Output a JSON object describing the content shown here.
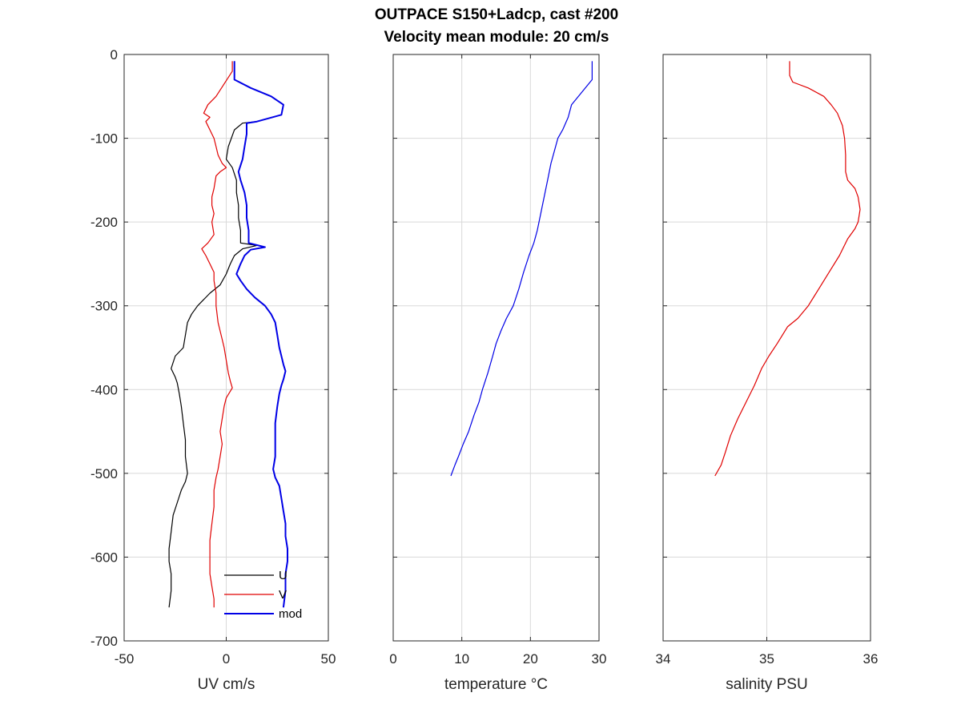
{
  "figure": {
    "title_line1": "OUTPACE S150+Ladcp, cast #200",
    "title_line2": "Velocity mean module:  20 cm/s"
  },
  "chart_data": [
    {
      "type": "line",
      "xlabel": "UV cm/s",
      "ylabel": "",
      "xlim": [
        -50,
        50
      ],
      "ylim": [
        -700,
        0
      ],
      "xticks": [
        -50,
        0,
        50
      ],
      "yticks": [
        0,
        -100,
        -200,
        -300,
        -400,
        -500,
        -600,
        -700
      ],
      "grid": true,
      "legend": {
        "placement": "bottom-right",
        "entries": [
          "U",
          "V",
          "mod"
        ]
      },
      "series": [
        {
          "name": "U",
          "color": "#000000",
          "width": 1.2,
          "points": [
            [
              4,
              -8
            ],
            [
              4,
              -30
            ],
            [
              12,
              -40
            ],
            [
              22,
              -50
            ],
            [
              28,
              -60
            ],
            [
              27,
              -72
            ],
            [
              15,
              -80
            ],
            [
              8,
              -82
            ],
            [
              4,
              -90
            ],
            [
              1,
              -110
            ],
            [
              0,
              -125
            ],
            [
              3,
              -135
            ],
            [
              5,
              -150
            ],
            [
              5,
              -165
            ],
            [
              6,
              -180
            ],
            [
              6,
              -195
            ],
            [
              7,
              -210
            ],
            [
              7,
              -225
            ],
            [
              15,
              -228
            ],
            [
              8,
              -232
            ],
            [
              4,
              -240
            ],
            [
              2,
              -250
            ],
            [
              0,
              -262
            ],
            [
              -3,
              -275
            ],
            [
              -8,
              -285
            ],
            [
              -14,
              -300
            ],
            [
              -17,
              -310
            ],
            [
              -19,
              -320
            ],
            [
              -20,
              -335
            ],
            [
              -21,
              -350
            ],
            [
              -25,
              -360
            ],
            [
              -27,
              -375
            ],
            [
              -25,
              -385
            ],
            [
              -24,
              -392
            ],
            [
              -23,
              -405
            ],
            [
              -22,
              -420
            ],
            [
              -21,
              -440
            ],
            [
              -20,
              -460
            ],
            [
              -20,
              -480
            ],
            [
              -19,
              -500
            ],
            [
              -20,
              -510
            ],
            [
              -22,
              -520
            ],
            [
              -24,
              -535
            ],
            [
              -26,
              -550
            ],
            [
              -27,
              -570
            ],
            [
              -28,
              -590
            ],
            [
              -28,
              -605
            ],
            [
              -27,
              -620
            ],
            [
              -27,
              -640
            ],
            [
              -28,
              -660
            ]
          ]
        },
        {
          "name": "V",
          "color": "#e00000",
          "width": 1.2,
          "points": [
            [
              3,
              -8
            ],
            [
              3,
              -20
            ],
            [
              -5,
              -50
            ],
            [
              -9,
              -60
            ],
            [
              -11,
              -70
            ],
            [
              -8,
              -75
            ],
            [
              -10,
              -80
            ],
            [
              -8,
              -90
            ],
            [
              -6,
              -100
            ],
            [
              -5,
              -110
            ],
            [
              -4,
              -120
            ],
            [
              -2,
              -130
            ],
            [
              0,
              -135
            ],
            [
              -3,
              -140
            ],
            [
              -5,
              -145
            ],
            [
              -6,
              -160
            ],
            [
              -7,
              -170
            ],
            [
              -7,
              -180
            ],
            [
              -6,
              -190
            ],
            [
              -7,
              -200
            ],
            [
              -6,
              -215
            ],
            [
              -9,
              -225
            ],
            [
              -12,
              -232
            ],
            [
              -10,
              -240
            ],
            [
              -8,
              -250
            ],
            [
              -6,
              -260
            ],
            [
              -6,
              -270
            ],
            [
              -5,
              -285
            ],
            [
              -5,
              -300
            ],
            [
              -4,
              -320
            ],
            [
              -2,
              -340
            ],
            [
              -1,
              -350
            ],
            [
              0,
              -365
            ],
            [
              1,
              -380
            ],
            [
              2,
              -390
            ],
            [
              3,
              -398
            ],
            [
              0,
              -410
            ],
            [
              -1,
              -420
            ],
            [
              -2,
              -435
            ],
            [
              -3,
              -450
            ],
            [
              -2,
              -465
            ],
            [
              -3,
              -480
            ],
            [
              -4,
              -495
            ],
            [
              -5,
              -505
            ],
            [
              -6,
              -520
            ],
            [
              -6,
              -540
            ],
            [
              -7,
              -560
            ],
            [
              -8,
              -580
            ],
            [
              -8,
              -600
            ],
            [
              -8,
              -620
            ],
            [
              -7,
              -635
            ],
            [
              -6,
              -650
            ],
            [
              -6,
              -660
            ]
          ]
        },
        {
          "name": "mod",
          "color": "#0000e6",
          "width": 2,
          "points": [
            [
              4,
              -8
            ],
            [
              4,
              -30
            ],
            [
              12,
              -40
            ],
            [
              22,
              -50
            ],
            [
              28,
              -60
            ],
            [
              27,
              -72
            ],
            [
              15,
              -80
            ],
            [
              10,
              -82
            ],
            [
              10,
              -95
            ],
            [
              9,
              -110
            ],
            [
              8,
              -125
            ],
            [
              6,
              -140
            ],
            [
              7,
              -150
            ],
            [
              9,
              -165
            ],
            [
              10,
              -180
            ],
            [
              10,
              -195
            ],
            [
              11,
              -210
            ],
            [
              11,
              -225
            ],
            [
              19,
              -230
            ],
            [
              12,
              -233
            ],
            [
              9,
              -240
            ],
            [
              7,
              -250
            ],
            [
              5,
              -262
            ],
            [
              7,
              -270
            ],
            [
              10,
              -280
            ],
            [
              14,
              -290
            ],
            [
              19,
              -300
            ],
            [
              22,
              -310
            ],
            [
              24,
              -320
            ],
            [
              25,
              -335
            ],
            [
              26,
              -350
            ],
            [
              27,
              -360
            ],
            [
              28,
              -370
            ],
            [
              29,
              -378
            ],
            [
              28,
              -388
            ],
            [
              27,
              -395
            ],
            [
              26,
              -405
            ],
            [
              25,
              -420
            ],
            [
              24,
              -440
            ],
            [
              24,
              -460
            ],
            [
              24,
              -480
            ],
            [
              23,
              -495
            ],
            [
              24,
              -505
            ],
            [
              26,
              -515
            ],
            [
              27,
              -530
            ],
            [
              28,
              -545
            ],
            [
              29,
              -560
            ],
            [
              29,
              -575
            ],
            [
              30,
              -590
            ],
            [
              30,
              -605
            ],
            [
              29,
              -620
            ],
            [
              29,
              -640
            ],
            [
              28,
              -660
            ]
          ]
        }
      ]
    },
    {
      "type": "line",
      "xlabel": "temperature °C",
      "ylabel": "",
      "xlim": [
        0,
        30
      ],
      "ylim": [
        -700,
        0
      ],
      "xticks": [
        0,
        10,
        20,
        30
      ],
      "grid": true,
      "series": [
        {
          "name": "",
          "color": "#0000e6",
          "width": 1.2,
          "points": [
            [
              29,
              -8
            ],
            [
              29,
              -30
            ],
            [
              28,
              -40
            ],
            [
              27,
              -50
            ],
            [
              26,
              -60
            ],
            [
              25.5,
              -75
            ],
            [
              24.7,
              -90
            ],
            [
              24,
              -100
            ],
            [
              23.5,
              -115
            ],
            [
              23,
              -130
            ],
            [
              22.5,
              -150
            ],
            [
              22,
              -170
            ],
            [
              21.5,
              -190
            ],
            [
              21,
              -210
            ],
            [
              20.5,
              -225
            ],
            [
              19.8,
              -240
            ],
            [
              19,
              -260
            ],
            [
              18.3,
              -280
            ],
            [
              17.5,
              -300
            ],
            [
              16.5,
              -315
            ],
            [
              15.7,
              -330
            ],
            [
              15,
              -345
            ],
            [
              14.5,
              -360
            ],
            [
              13.8,
              -380
            ],
            [
              13,
              -400
            ],
            [
              12.5,
              -415
            ],
            [
              11.8,
              -430
            ],
            [
              11,
              -450
            ],
            [
              10.2,
              -465
            ],
            [
              9.5,
              -480
            ],
            [
              9,
              -490
            ],
            [
              8.4,
              -503
            ]
          ]
        }
      ]
    },
    {
      "type": "line",
      "xlabel": "salinity PSU",
      "ylabel": "",
      "xlim": [
        34,
        36
      ],
      "ylim": [
        -700,
        0
      ],
      "xticks": [
        34,
        35,
        36
      ],
      "grid": true,
      "series": [
        {
          "name": "",
          "color": "#e00000",
          "width": 1.2,
          "points": [
            [
              35.22,
              -8
            ],
            [
              35.22,
              -25
            ],
            [
              35.25,
              -33
            ],
            [
              35.4,
              -40
            ],
            [
              35.55,
              -50
            ],
            [
              35.62,
              -60
            ],
            [
              35.68,
              -70
            ],
            [
              35.73,
              -85
            ],
            [
              35.75,
              -100
            ],
            [
              35.76,
              -120
            ],
            [
              35.76,
              -140
            ],
            [
              35.78,
              -150
            ],
            [
              35.85,
              -160
            ],
            [
              35.88,
              -170
            ],
            [
              35.9,
              -185
            ],
            [
              35.88,
              -200
            ],
            [
              35.85,
              -208
            ],
            [
              35.78,
              -220
            ],
            [
              35.7,
              -240
            ],
            [
              35.6,
              -260
            ],
            [
              35.5,
              -280
            ],
            [
              35.4,
              -300
            ],
            [
              35.3,
              -315
            ],
            [
              35.2,
              -325
            ],
            [
              35.1,
              -345
            ],
            [
              35.02,
              -360
            ],
            [
              34.95,
              -375
            ],
            [
              34.88,
              -395
            ],
            [
              34.8,
              -415
            ],
            [
              34.72,
              -435
            ],
            [
              34.65,
              -455
            ],
            [
              34.6,
              -475
            ],
            [
              34.56,
              -490
            ],
            [
              34.5,
              -503
            ]
          ]
        }
      ]
    }
  ]
}
